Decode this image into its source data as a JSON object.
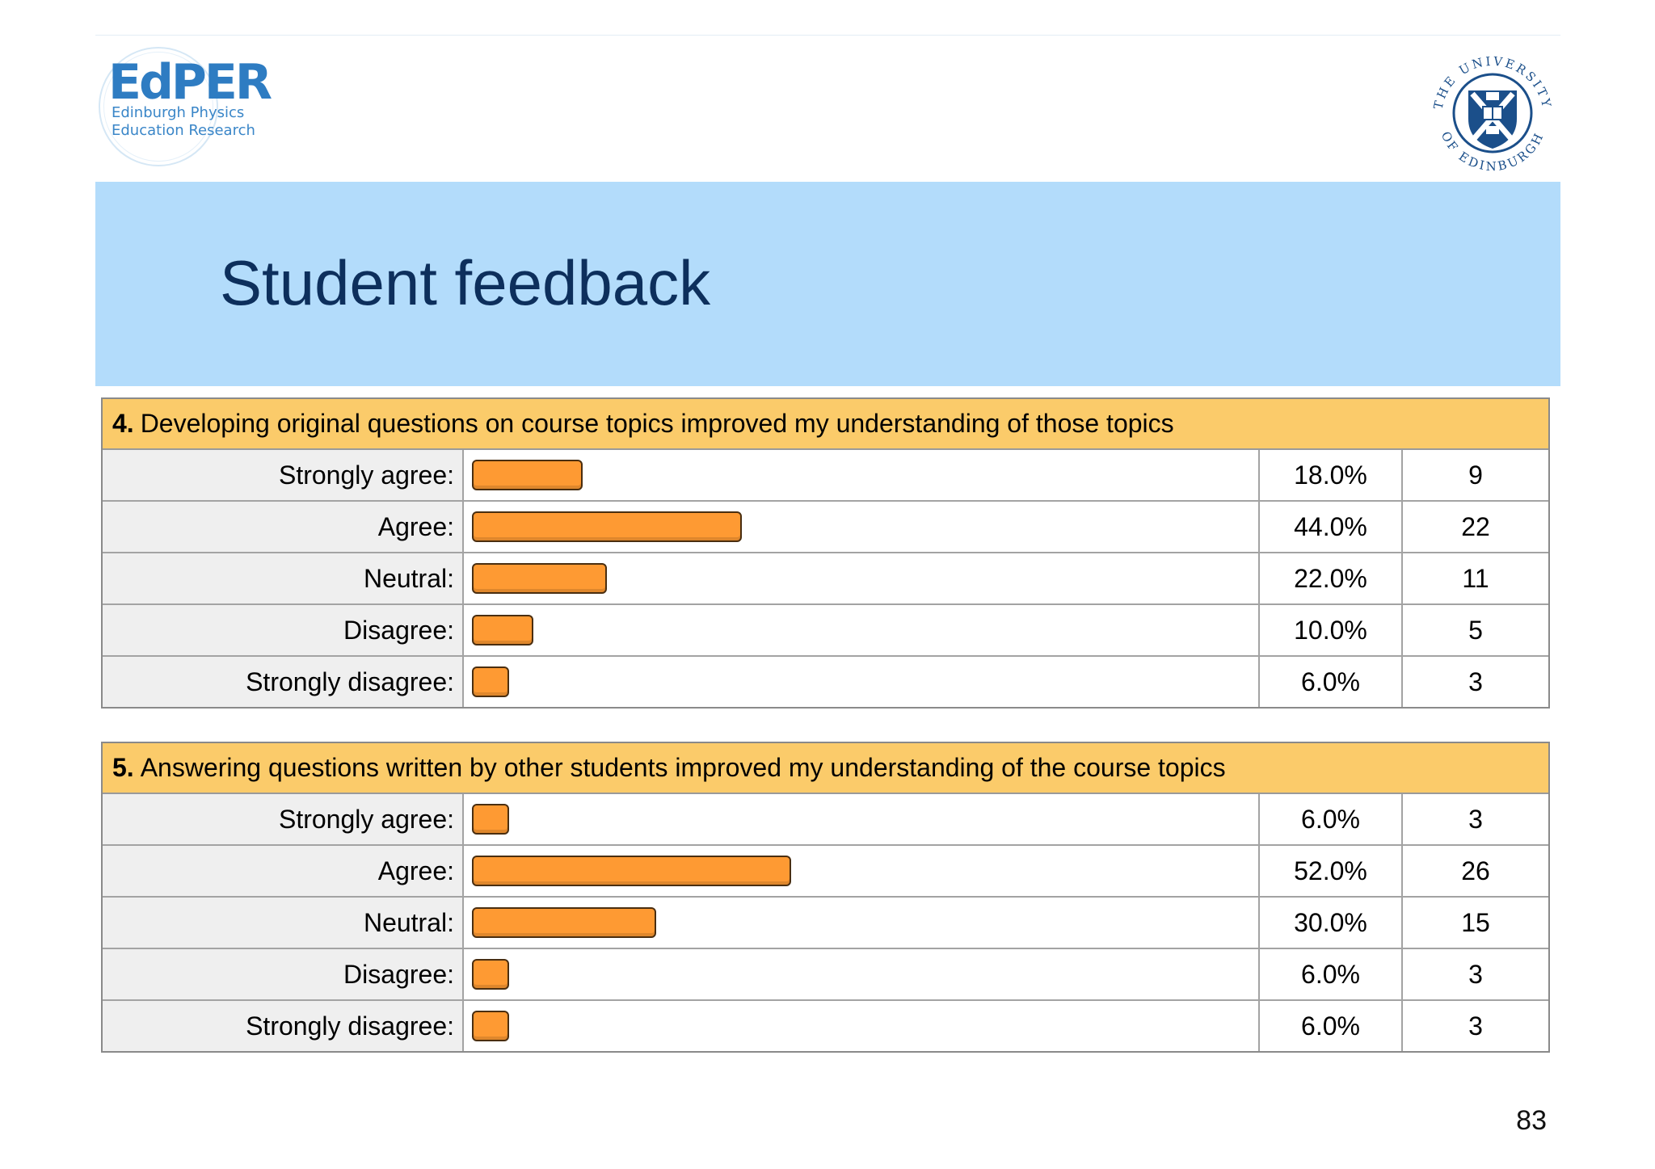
{
  "header": {
    "logo_word": "EdPER",
    "logo_sub_line1": "Edinburgh Physics",
    "logo_sub_line2": "Education Research",
    "crest_top_text": "THE UNIVERSITY",
    "crest_bottom_text": "OF EDINBURGH",
    "title": "Student feedback"
  },
  "colors": {
    "title_band": "#b3dcfb",
    "title_text": "#0d2f5c",
    "question_header": "#fbcb6a",
    "bar_fill": "#fe9a33",
    "bar_border": "#4a2e10"
  },
  "chart_data": [
    {
      "type": "bar",
      "orientation": "horizontal",
      "question_number": "4.",
      "title": "Developing original questions on course topics improved my understanding of those topics",
      "categories": [
        "Strongly agree:",
        "Agree:",
        "Neutral:",
        "Disagree:",
        "Strongly disagree:"
      ],
      "percent_labels": [
        "18.0%",
        "44.0%",
        "22.0%",
        "10.0%",
        "6.0%"
      ],
      "values": [
        18.0,
        44.0,
        22.0,
        10.0,
        6.0
      ],
      "counts": [
        "9",
        "22",
        "11",
        "5",
        "3"
      ],
      "xlim": [
        0,
        100
      ]
    },
    {
      "type": "bar",
      "orientation": "horizontal",
      "question_number": "5.",
      "title": "Answering questions written by other students improved my understanding of the course topics",
      "categories": [
        "Strongly agree:",
        "Agree:",
        "Neutral:",
        "Disagree:",
        "Strongly disagree:"
      ],
      "percent_labels": [
        "6.0%",
        "52.0%",
        "30.0%",
        "6.0%",
        "6.0%"
      ],
      "values": [
        6.0,
        52.0,
        30.0,
        6.0,
        6.0
      ],
      "counts": [
        "3",
        "26",
        "15",
        "3",
        "3"
      ],
      "xlim": [
        0,
        100
      ]
    }
  ],
  "footer": {
    "page_number": "83"
  }
}
